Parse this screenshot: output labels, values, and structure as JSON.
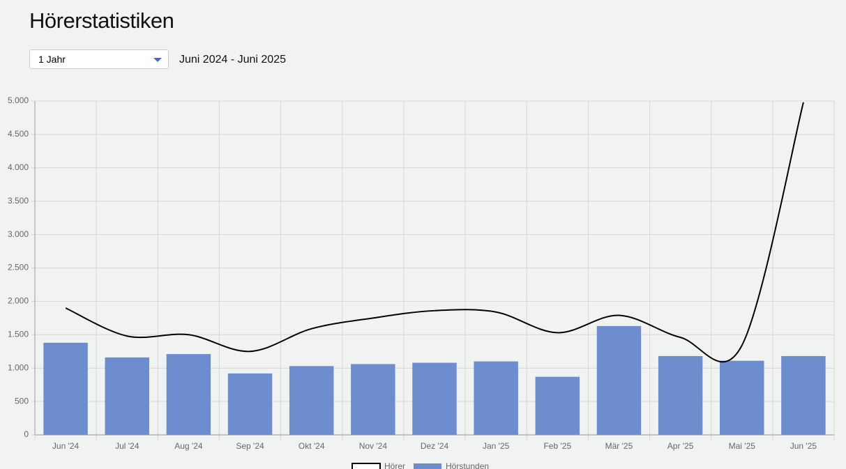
{
  "page": {
    "title": "Hörerstatistiken",
    "period_select": "1 Jahr",
    "date_range": "Juni 2024 - Juni 2025"
  },
  "chart_data": {
    "type": "bar-line",
    "categories": [
      "Jun '24",
      "Jul '24",
      "Aug '24",
      "Sep '24",
      "Okt '24",
      "Nov '24",
      "Dez '24",
      "Jan '25",
      "Feb '25",
      "Mär '25",
      "Apr '25",
      "Mai '25",
      "Jun '25"
    ],
    "series": [
      {
        "name": "Hörer",
        "type": "line",
        "color": "#000000",
        "values": [
          1900,
          1480,
          1500,
          1250,
          1590,
          1750,
          1860,
          1840,
          1530,
          1790,
          1460,
          1340,
          4980
        ]
      },
      {
        "name": "Hörstunden",
        "type": "bar",
        "color": "#6d8dce",
        "values": [
          1380,
          1160,
          1210,
          920,
          1030,
          1060,
          1080,
          1100,
          870,
          1630,
          1180,
          1110,
          1180
        ]
      }
    ],
    "ylim": [
      0,
      5000
    ],
    "yticks": [
      0,
      500,
      {
        "value": 1000,
        "label": "1.000"
      },
      {
        "value": 1500,
        "label": "1.500"
      },
      {
        "value": 2000,
        "label": "2.000"
      },
      {
        "value": 2500,
        "label": "2.500"
      },
      {
        "value": 3000,
        "label": "3.000"
      },
      {
        "value": 3500,
        "label": "3.500"
      },
      {
        "value": 4000,
        "label": "4.000"
      },
      {
        "value": 4500,
        "label": "4.500"
      },
      {
        "value": 5000,
        "label": "5.000"
      }
    ],
    "grid": true,
    "legend": "bottom"
  }
}
